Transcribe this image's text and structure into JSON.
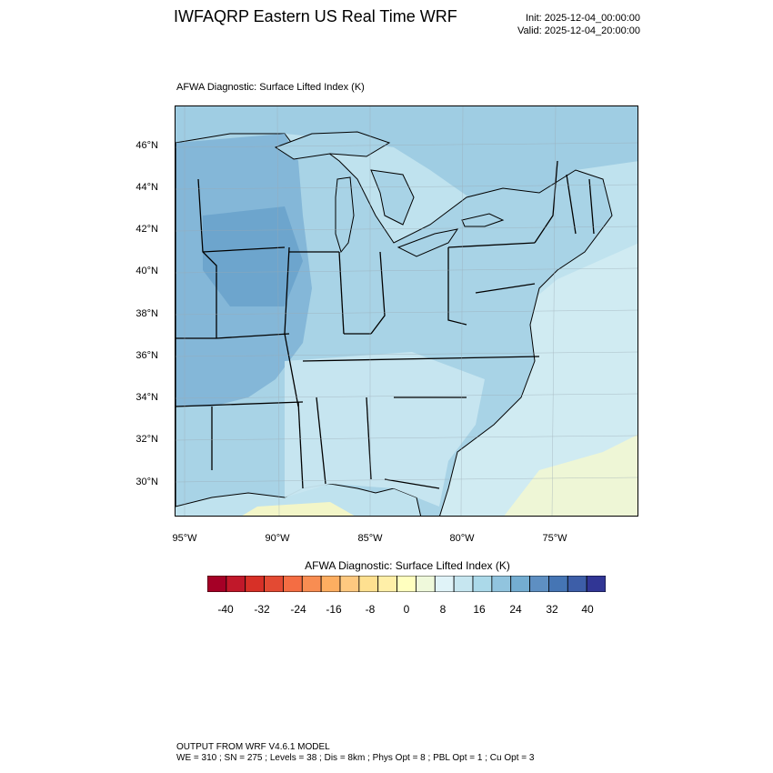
{
  "header": {
    "title": "IWFAQRP Eastern US Real Time WRF",
    "init": "Init: 2025-12-04_00:00:00",
    "valid": "Valid: 2025-12-04_20:00:00"
  },
  "plot": {
    "title": "AFWA Diagnostic: Surface Lifted Index   (K)"
  },
  "map": {
    "lat_labels": [
      "46°N",
      "44°N",
      "42°N",
      "40°N",
      "38°N",
      "36°N",
      "34°N",
      "32°N",
      "30°N"
    ],
    "lon_labels": [
      "95°W",
      "90°W",
      "85°W",
      "80°W",
      "75°W"
    ],
    "colors": {
      "ocean": "#bfe2ee",
      "land_default": "#a8d3e6",
      "midwest": "#7fb4d6",
      "deep": "#6aa3cc",
      "southeast": "#c7e6f0",
      "warm": "#f3f6c8"
    }
  },
  "colorbar": {
    "title": "AFWA Diagnostic: Surface Lifted Index  (K)",
    "ticks": [
      "-40",
      "-32",
      "-24",
      "-16",
      "-8",
      "0",
      "8",
      "16",
      "24",
      "32",
      "40"
    ],
    "colors": [
      "#a50026",
      "#c1182a",
      "#d73027",
      "#e34a33",
      "#f46d43",
      "#f88d52",
      "#fdae61",
      "#fec980",
      "#fee090",
      "#ffefa8",
      "#ffffbf",
      "#eff9db",
      "#e0f3f8",
      "#c6e6f0",
      "#abd9e9",
      "#91c4de",
      "#74add1",
      "#5e8fc2",
      "#4575b4",
      "#3d5ea8",
      "#313695"
    ]
  },
  "footer": {
    "line1": "OUTPUT FROM WRF V4.6.1 MODEL",
    "line2": "WE = 310 ; SN = 275 ; Levels = 38 ; Dis = 8km ; Phys Opt = 8 ; PBL Opt = 1 ; Cu Opt = 3"
  }
}
